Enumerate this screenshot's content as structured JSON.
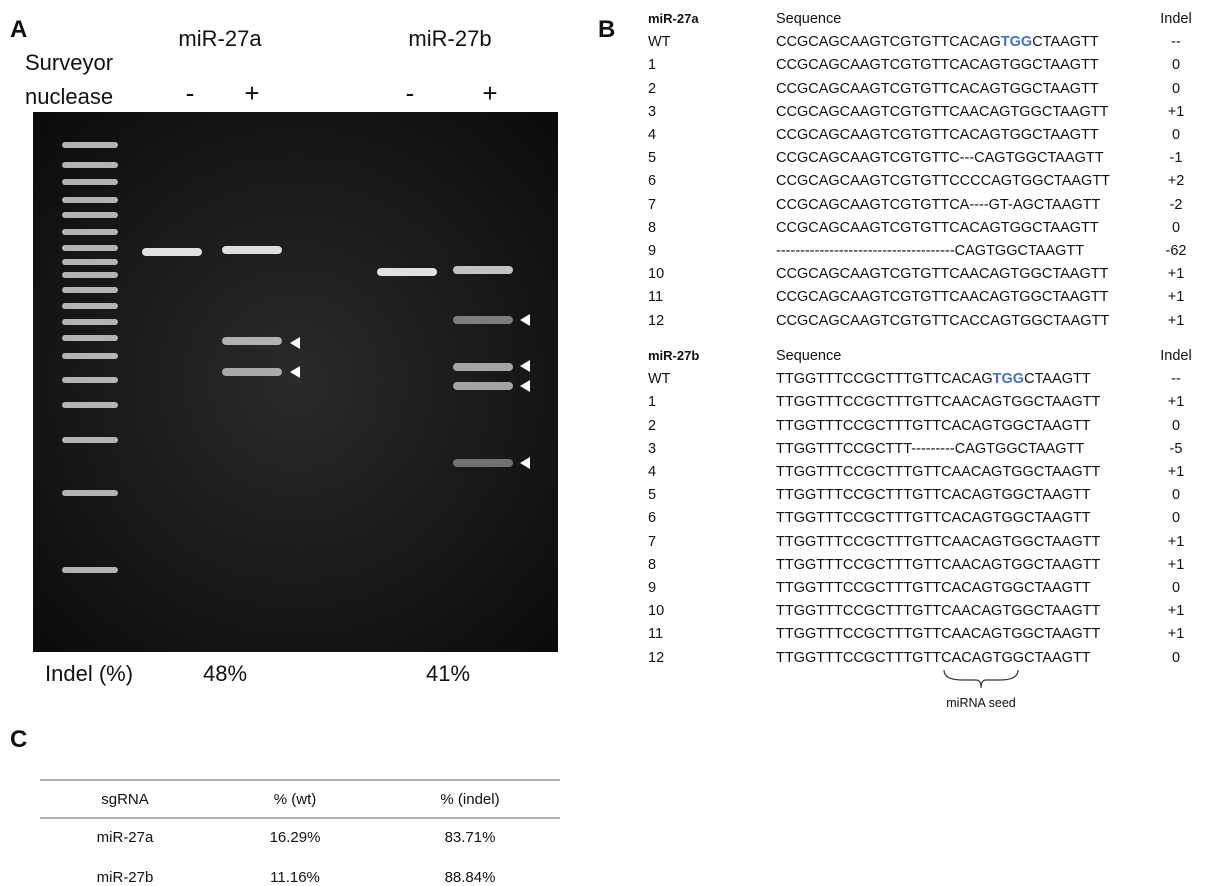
{
  "panel_a": {
    "label": "A",
    "samples": [
      "miR-27a",
      "miR-27b"
    ],
    "row_label": [
      "Surveyor",
      "nuclease"
    ],
    "lanes": [
      "-",
      "+",
      "-",
      "+"
    ],
    "indel_label": "Indel (%)",
    "indel_values": [
      "48%",
      "41%"
    ]
  },
  "panel_b": {
    "label": "B",
    "seed_label": "miRNA seed",
    "groups": [
      {
        "name": "miR-27a",
        "sequence_header": "Sequence",
        "indel_header": "Indel",
        "wt": {
          "id": "WT",
          "sequence": [
            "CCGCAGCAAGTCGTGTTCACAG",
            "TGG",
            "CTAAGTT"
          ],
          "indel": "--"
        },
        "clones": [
          [
            "1",
            "CCGCAGCAAGTCGTGTTCACAGTGGCTAAGTT",
            "0"
          ],
          [
            "2",
            "CCGCAGCAAGTCGTGTTCACAGTGGCTAAGTT",
            "0"
          ],
          [
            "3",
            "CCGCAGCAAGTCGTGTTCAACAGTGGCTAAGTT",
            "+1"
          ],
          [
            "4",
            "CCGCAGCAAGTCGTGTTCACAGTGGCTAAGTT",
            "0"
          ],
          [
            "5",
            "CCGCAGCAAGTCGTGTTC---CAGTGGCTAAGTT",
            "-1"
          ],
          [
            "6",
            "CCGCAGCAAGTCGTGTTCCCCAGTGGCTAAGTT",
            "+2"
          ],
          [
            "7",
            "CCGCAGCAAGTCGTGTTCA----GT-AGCTAAGTT",
            "-2"
          ],
          [
            "8",
            "CCGCAGCAAGTCGTGTTCACAGTGGCTAAGTT",
            "0"
          ],
          [
            "9",
            "-------------------------------------CAGTGGCTAAGTT",
            "-62"
          ],
          [
            "10",
            "CCGCAGCAAGTCGTGTTCAACAGTGGCTAAGTT",
            "+1"
          ],
          [
            "11",
            "CCGCAGCAAGTCGTGTTCAACAGTGGCTAAGTT",
            "+1"
          ],
          [
            "12",
            "CCGCAGCAAGTCGTGTTCACCAGTGGCTAAGTT",
            "+1"
          ]
        ]
      },
      {
        "name": "miR-27b",
        "sequence_header": "Sequence",
        "indel_header": "Indel",
        "wt": {
          "id": "WT",
          "sequence": [
            "TTGGTTTCCGCTTTGTTCACAG",
            "TGG",
            "CTAAGTT"
          ],
          "indel": "--"
        },
        "clones": [
          [
            "1",
            "TTGGTTTCCGCTTTGTTCAACAGTGGCTAAGTT",
            "+1"
          ],
          [
            "2",
            "TTGGTTTCCGCTTTGTTCACAGTGGCTAAGTT",
            "0"
          ],
          [
            "3",
            "TTGGTTTCCGCTTT---------CAGTGGCTAAGTT",
            "-5"
          ],
          [
            "4",
            "TTGGTTTCCGCTTTGTTCAACAGTGGCTAAGTT",
            "+1"
          ],
          [
            "5",
            "TTGGTTTCCGCTTTGTTCACAGTGGCTAAGTT",
            "0"
          ],
          [
            "6",
            "TTGGTTTCCGCTTTGTTCACAGTGGCTAAGTT",
            "0"
          ],
          [
            "7",
            "TTGGTTTCCGCTTTGTTCAACAGTGGCTAAGTT",
            "+1"
          ],
          [
            "8",
            "TTGGTTTCCGCTTTGTTCAACAGTGGCTAAGTT",
            "+1"
          ],
          [
            "9",
            "TTGGTTTCCGCTTTGTTCACAGTGGCTAAGTT",
            "0"
          ],
          [
            "10",
            "TTGGTTTCCGCTTTGTTCAACAGTGGCTAAGTT",
            "+1"
          ],
          [
            "11",
            "TTGGTTTCCGCTTTGTTCAACAGTGGCTAAGTT",
            "+1"
          ],
          [
            "12",
            "TTGGTTTCCGCTTTGTTCACAGTGGCTAAGTT",
            "0"
          ]
        ]
      }
    ]
  },
  "panel_c": {
    "label": "C",
    "table": {
      "header": [
        "sgRNA",
        "% (wt)",
        "% (indel)"
      ],
      "rows": [
        [
          "miR-27a",
          "16.29%",
          "83.71%"
        ],
        [
          "miR-27b",
          "11.16%",
          "88.84%"
        ]
      ]
    }
  }
}
